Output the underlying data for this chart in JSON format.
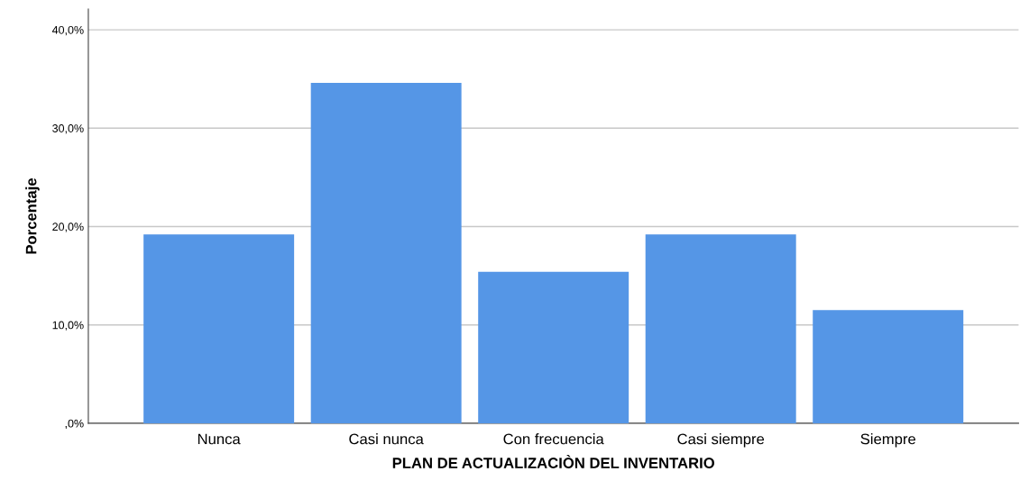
{
  "chart_data": {
    "type": "bar",
    "xlabel": "PLAN DE ACTUALIZACIÒN DEL INVENTARIO",
    "ylabel": "Porcentaje",
    "categories": [
      "Nunca",
      "Casi nunca",
      "Con frecuencia",
      "Casi siempre",
      "Siempre"
    ],
    "values": [
      19.2,
      34.6,
      15.4,
      19.2,
      11.5
    ],
    "color": "#5596e6",
    "ylim": [
      0,
      42.1
    ],
    "yticks": [
      {
        "value": 0,
        "label": ",0%"
      },
      {
        "value": 10,
        "label": "10,0%"
      },
      {
        "value": 20,
        "label": "20,0%"
      },
      {
        "value": 30,
        "label": "30,0%"
      },
      {
        "value": 40,
        "label": "40,0%"
      }
    ],
    "grid": "y"
  }
}
